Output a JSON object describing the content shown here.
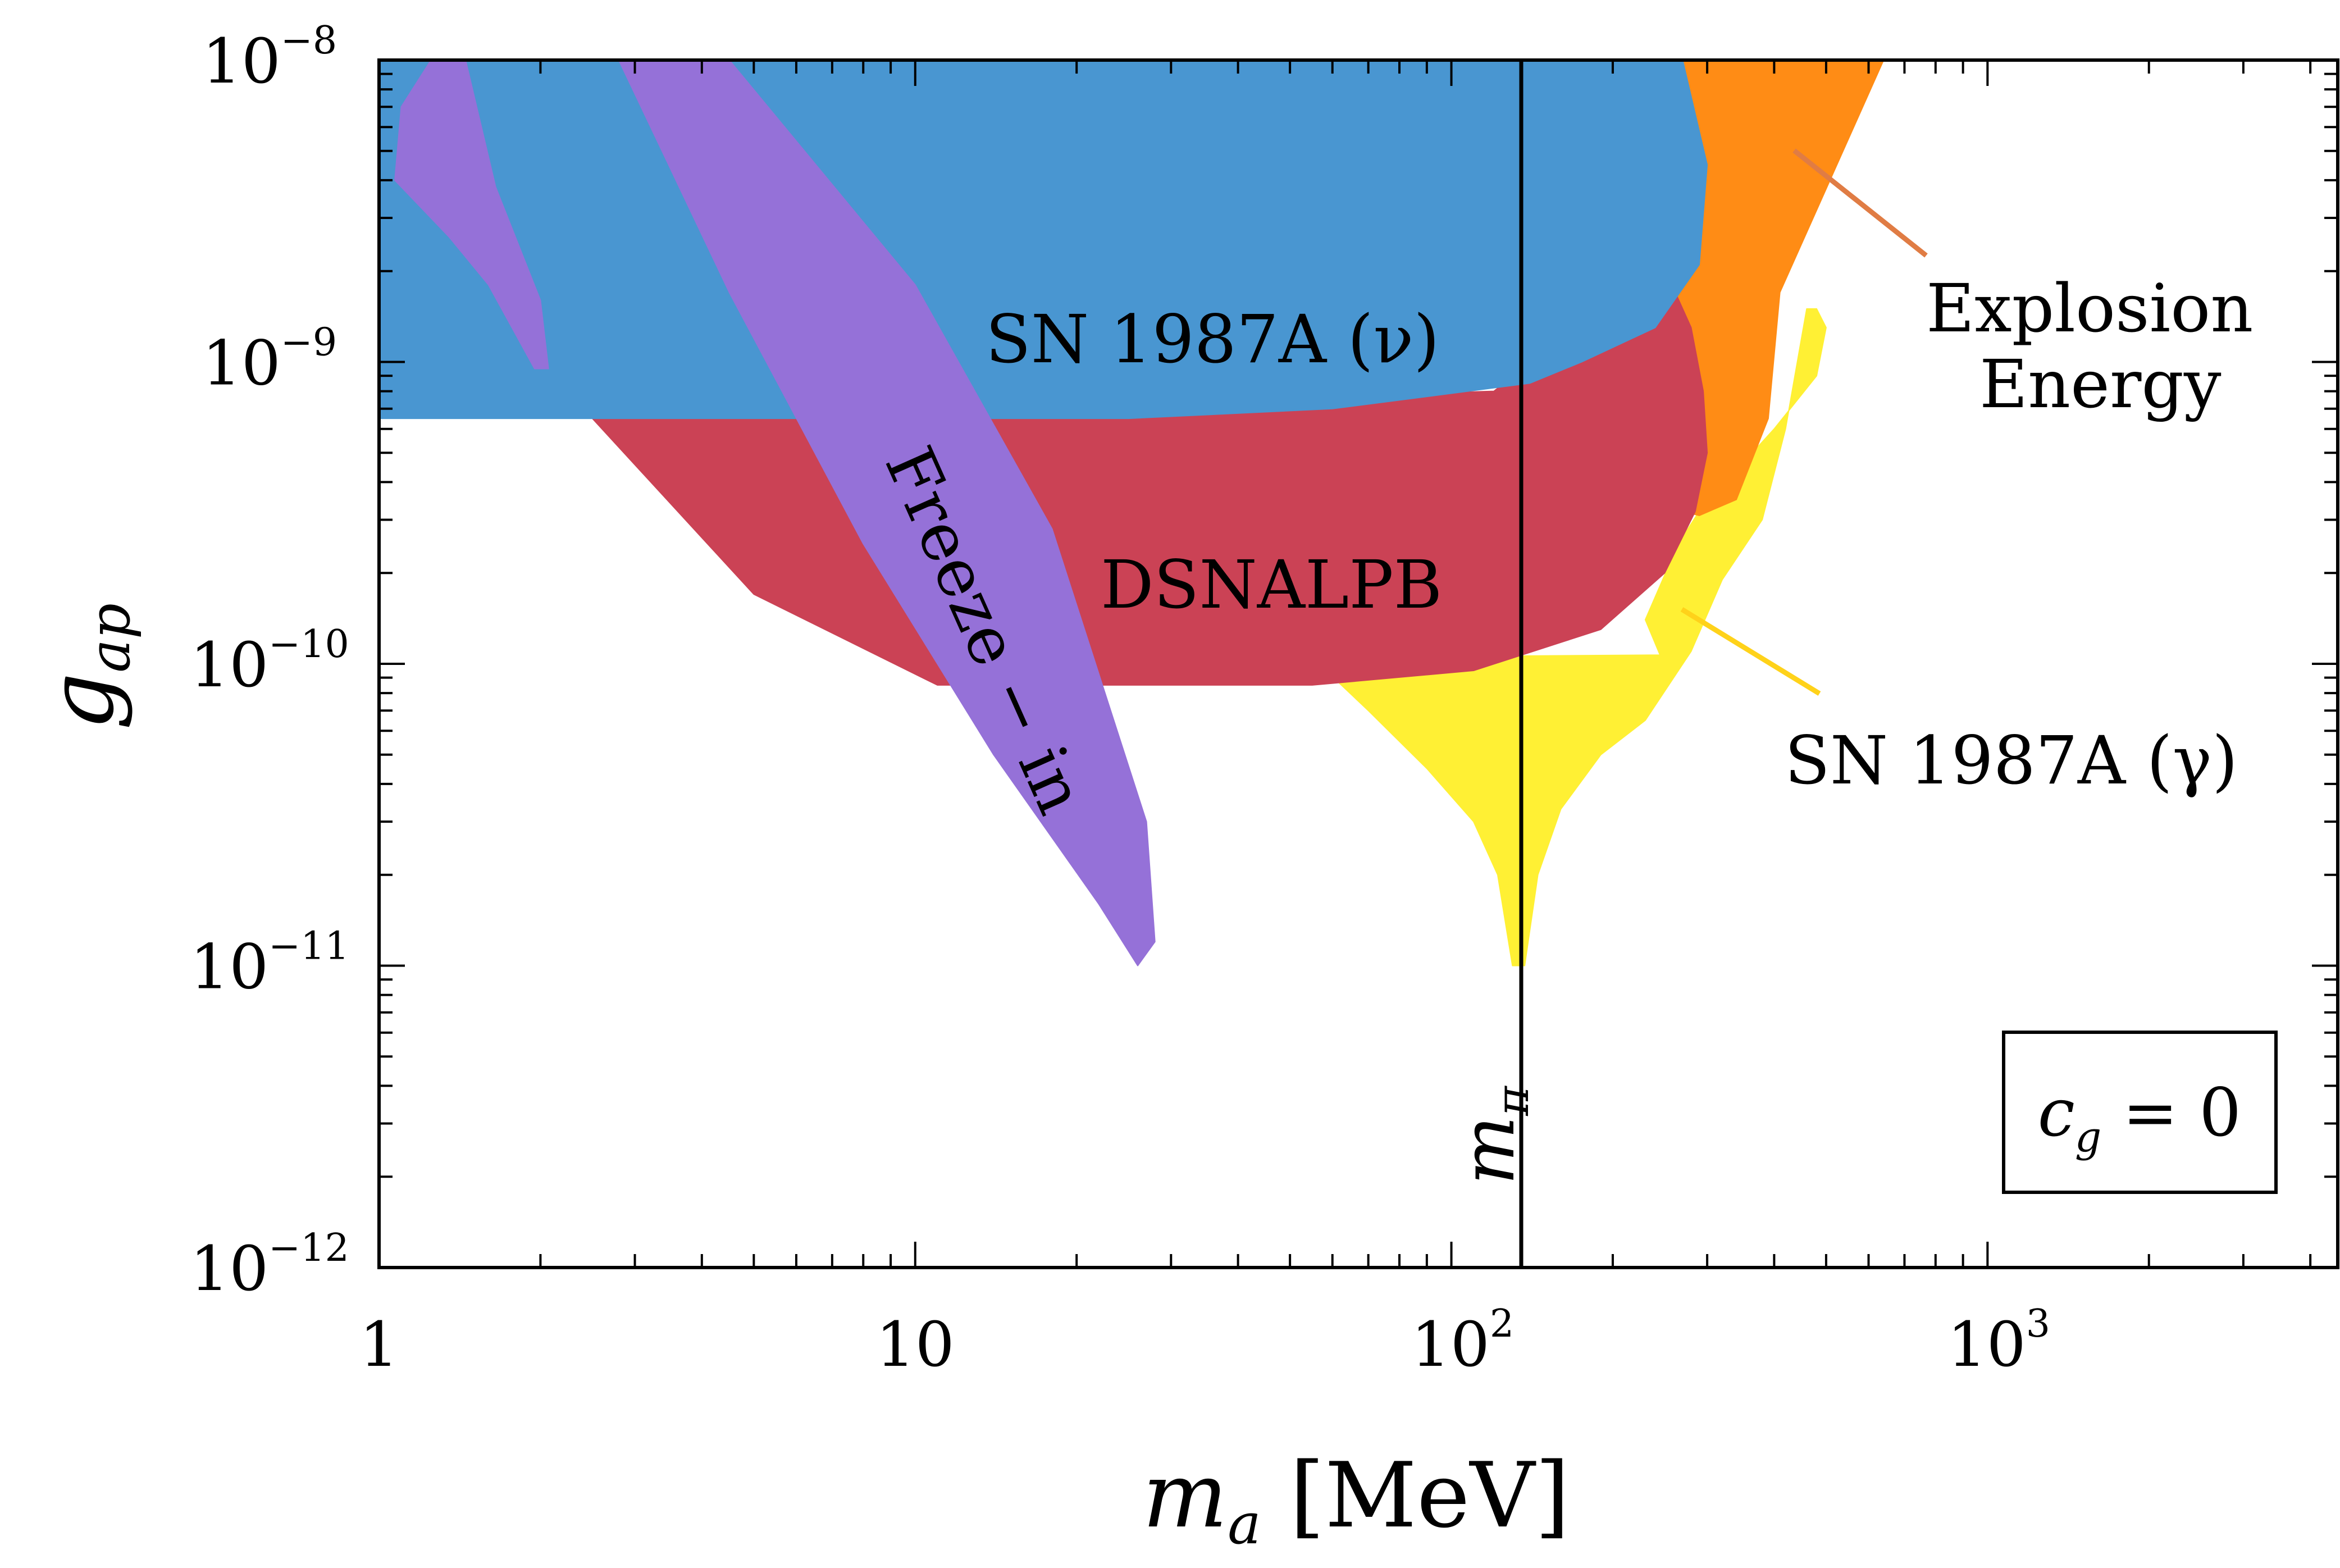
{
  "chart_data": {
    "type": "area",
    "title": "",
    "xlabel_main": "m",
    "xlabel_sub": "a",
    "xlabel_unit": " [MeV]",
    "ylabel_main": "g",
    "ylabel_sub": "ap",
    "xscale": "log",
    "yscale": "log",
    "xlim": [
      1,
      4500
    ],
    "ylim": [
      1e-12,
      1e-08
    ],
    "x_ticks": [
      {
        "value": 1,
        "base": "1",
        "exp": ""
      },
      {
        "value": 10,
        "base": "10",
        "exp": ""
      },
      {
        "value": 100,
        "base": "10",
        "exp": "2"
      },
      {
        "value": 1000,
        "base": "10",
        "exp": "3"
      }
    ],
    "y_ticks": [
      {
        "value": 1e-08,
        "base": "10",
        "exp": "−8"
      },
      {
        "value": 1e-09,
        "base": "10",
        "exp": "−9"
      },
      {
        "value": 1e-10,
        "base": "10",
        "exp": "−10"
      },
      {
        "value": 1e-11,
        "base": "10",
        "exp": "−11"
      },
      {
        "value": 1e-12,
        "base": "10",
        "exp": "−12"
      }
    ],
    "regions": [
      {
        "name": "SN 1987A (γ)",
        "color": "#fff034",
        "polygon": [
          [
            55,
            1.05e-10
          ],
          [
            245,
            1.07e-10
          ],
          [
            230,
            1.4e-10
          ],
          [
            265,
            2.5e-10
          ],
          [
            290,
            3.2e-10
          ],
          [
            400,
            6e-10
          ],
          [
            480,
            9e-10
          ],
          [
            500,
            1.3e-09
          ],
          [
            480,
            1.5e-09
          ],
          [
            460,
            1.5e-09
          ],
          [
            420,
            6e-10
          ],
          [
            380,
            3e-10
          ],
          [
            320,
            1.9e-10
          ],
          [
            280,
            1.1e-10
          ],
          [
            230,
            6.5e-11
          ],
          [
            190,
            5e-11
          ],
          [
            160,
            3.3e-11
          ],
          [
            145,
            2e-11
          ],
          [
            137,
            1e-11
          ],
          [
            130,
            1e-11
          ],
          [
            122,
            2e-11
          ],
          [
            110,
            3e-11
          ],
          [
            90,
            4.5e-11
          ],
          [
            70,
            7e-11
          ]
        ]
      },
      {
        "name": "Explosion Energy",
        "color": "#ff8c15",
        "polygon": [
          [
            270,
            1e-08
          ],
          [
            640,
            1e-08
          ],
          [
            410,
            1.7e-09
          ],
          [
            390,
            6.5e-10
          ],
          [
            340,
            3.5e-10
          ],
          [
            290,
            3.1e-10
          ],
          [
            220,
            3.5e-10
          ],
          [
            230,
            1.8e-09
          ],
          [
            260,
            4e-09
          ]
        ]
      },
      {
        "name": "DSNALPB",
        "color": "#cb4255",
        "polygon": [
          [
            2.5,
            6.5e-10
          ],
          [
            5.0,
            1.7e-10
          ],
          [
            11,
            8.5e-11
          ],
          [
            55,
            8.5e-11
          ],
          [
            110,
            9.5e-11
          ],
          [
            190,
            1.3e-10
          ],
          [
            250,
            2e-10
          ],
          [
            285,
            3.2e-10
          ],
          [
            300,
            5e-10
          ],
          [
            295,
            8e-10
          ],
          [
            280,
            1.3e-09
          ],
          [
            245,
            2.2e-09
          ],
          [
            120,
            8e-10
          ]
        ]
      },
      {
        "name": "SN 1987A (ν)",
        "color": "#4996d1",
        "polygon": [
          [
            1,
            1e-08
          ],
          [
            270,
            1e-08
          ],
          [
            300,
            4.5e-09
          ],
          [
            290,
            2.1e-09
          ],
          [
            240,
            1.3e-09
          ],
          [
            175,
            1e-09
          ],
          [
            140,
            8.5e-10
          ],
          [
            60,
            7e-10
          ],
          [
            25,
            6.5e-10
          ],
          [
            1,
            6.5e-10
          ]
        ]
      },
      {
        "name": "Freeze-in (upper-left)",
        "color": "#9571d8",
        "polygon": [
          [
            1.25,
            1e-08
          ],
          [
            1.45,
            1e-08
          ],
          [
            1.65,
            3.8e-09
          ],
          [
            2.0,
            1.6e-09
          ],
          [
            2.07,
            9.5e-10
          ],
          [
            1.95,
            9.5e-10
          ],
          [
            1.6,
            1.8e-09
          ],
          [
            1.35,
            2.6e-09
          ],
          [
            1.07,
            4e-09
          ],
          [
            1.1,
            7e-09
          ]
        ]
      },
      {
        "name": "Freeze-in (band)",
        "color": "#9571d8",
        "polygon": [
          [
            2.8,
            1e-08
          ],
          [
            4.5,
            1e-08
          ],
          [
            10,
            1.8e-09
          ],
          [
            18,
            2.8e-10
          ],
          [
            27,
            3e-11
          ],
          [
            28,
            1.2e-11
          ],
          [
            26,
            1e-11
          ],
          [
            22,
            1.6e-11
          ],
          [
            14,
            5e-11
          ],
          [
            8,
            2.5e-10
          ],
          [
            4.5,
            1.7e-09
          ]
        ]
      }
    ],
    "m_pi": {
      "value": 135,
      "label_main": "m",
      "label_sub": "π",
      "color": "#000000"
    },
    "labels": {
      "sn_nu": "SN 1987A (ν)",
      "dsnalpb": "DSNALPB",
      "freeze_in": "Freeze − in",
      "explosion_line1": "Explosion",
      "explosion_line2": "Energy",
      "sn_gamma": "SN 1987A (γ)"
    },
    "pointers": {
      "explosion_color": "#e07c44",
      "sn_gamma_color": "#ffd21a"
    },
    "legend_box": {
      "c_main": "c",
      "c_sub": "g",
      "rest": " = 0"
    }
  }
}
